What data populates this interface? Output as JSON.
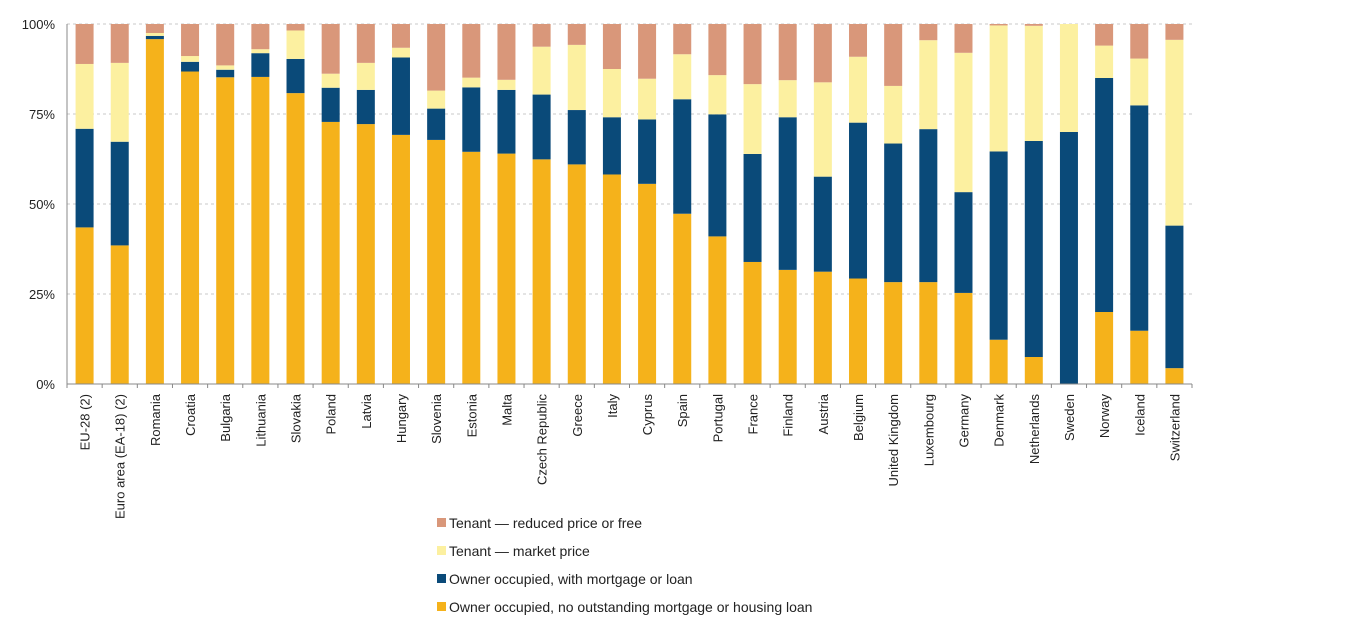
{
  "chart_data": {
    "type": "bar",
    "stacked": true,
    "title": "",
    "xlabel": "",
    "ylabel": "",
    "ylim": [
      0,
      100
    ],
    "yticks": [
      "0%",
      "25%",
      "50%",
      "75%",
      "100%"
    ],
    "grid": true,
    "legend_position": "bottom",
    "categories": [
      "EU-28 (2)",
      "Euro area (EA-18) (2)",
      "Romania",
      "Croatia",
      "Bulgaria",
      "Lithuania",
      "Slovakia",
      "Poland",
      "Latvia",
      "Hungary",
      "Slovenia",
      "Estonia",
      "Malta",
      "Czech Republic",
      "Greece",
      "Italy",
      "Cyprus",
      "Spain",
      "Portugal",
      "France",
      "Finland",
      "Austria",
      "Belgium",
      "United Kingdom",
      "Luxembourg",
      "Germany",
      "Denmark",
      "Netherlands",
      "Sweden",
      "Norway",
      "Iceland",
      "Switzerland"
    ],
    "series": [
      {
        "name": "Owner occupied, no outstanding mortgage or housing loan",
        "color": "#F5B21B",
        "values": [
          43.5,
          38.5,
          95.8,
          86.8,
          85.2,
          85.3,
          80.8,
          72.8,
          72.2,
          69.2,
          67.8,
          64.5,
          64.0,
          62.4,
          61.0,
          58.2,
          55.6,
          47.3,
          41.0,
          33.9,
          31.7,
          31.2,
          29.3,
          28.3,
          28.3,
          25.3,
          12.3,
          7.5,
          0.0,
          20.0,
          14.8,
          4.4
        ]
      },
      {
        "name": "Owner occupied, with mortgage or loan",
        "color": "#0A4A79",
        "values": [
          27.4,
          28.8,
          0.9,
          2.7,
          2.1,
          6.6,
          9.5,
          9.5,
          9.5,
          21.5,
          8.7,
          17.9,
          17.7,
          18.0,
          15.1,
          15.9,
          17.9,
          31.8,
          33.9,
          30.0,
          42.4,
          26.4,
          43.3,
          38.5,
          42.5,
          28.0,
          52.3,
          60.0,
          70.0,
          65.0,
          62.6,
          39.6
        ]
      },
      {
        "name": "Tenant — market price",
        "color": "#FCF0A0",
        "values": [
          18.0,
          21.9,
          0.8,
          1.6,
          1.2,
          1.1,
          7.9,
          3.9,
          7.5,
          2.7,
          5.0,
          2.7,
          2.8,
          13.3,
          18.1,
          13.4,
          11.3,
          12.5,
          10.9,
          19.4,
          10.3,
          26.2,
          18.3,
          16.0,
          24.7,
          38.7,
          35.0,
          32.0,
          30.0,
          9.0,
          13.0,
          51.6
        ]
      },
      {
        "name": "Tenant — reduced price or free",
        "color": "#D9977A",
        "values": [
          11.1,
          10.8,
          2.5,
          8.9,
          11.5,
          7.0,
          1.8,
          13.8,
          10.8,
          6.6,
          18.5,
          14.9,
          15.5,
          6.3,
          5.8,
          12.5,
          15.2,
          8.4,
          14.2,
          16.7,
          15.6,
          16.2,
          9.1,
          17.2,
          4.5,
          8.0,
          0.4,
          0.5,
          0.0,
          6.0,
          9.6,
          4.4
        ]
      }
    ]
  },
  "legend": {
    "items": [
      {
        "label": "Tenant — reduced price or free",
        "color": "#D9977A"
      },
      {
        "label": "Tenant — market price",
        "color": "#FCF0A0"
      },
      {
        "label": "Owner occupied, with mortgage or loan",
        "color": "#0A4A79"
      },
      {
        "label": "Owner occupied, no outstanding mortgage or housing loan",
        "color": "#F5B21B"
      }
    ]
  }
}
